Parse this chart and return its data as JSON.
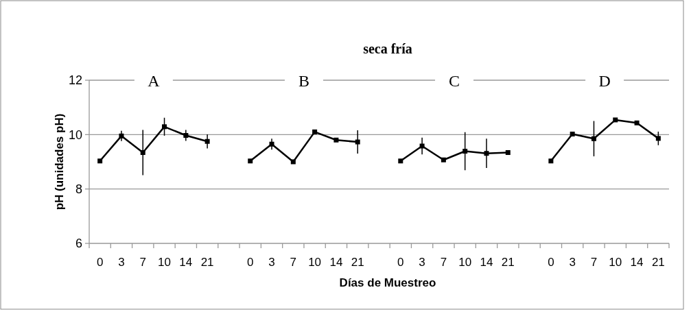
{
  "chart_data": {
    "type": "line",
    "title": "seca fría",
    "xlabel": "Días de Muestreo",
    "ylabel": "pH (unidades pH)",
    "categories": [
      "0",
      "3",
      "7",
      "10",
      "14",
      "21",
      null,
      "0",
      "3",
      "7",
      "10",
      "14",
      "21",
      null,
      "0",
      "3",
      "7",
      "10",
      "14",
      "21",
      null,
      "0",
      "3",
      "7",
      "10",
      "14",
      "21"
    ],
    "series": [
      {
        "color": "#000000",
        "values": [
          9.03,
          9.95,
          9.34,
          10.29,
          9.97,
          9.75,
          null,
          9.03,
          9.65,
          9.0,
          10.1,
          9.8,
          9.73,
          null,
          9.03,
          9.58,
          9.07,
          9.39,
          9.31,
          9.34,
          null,
          9.03,
          10.02,
          9.85,
          10.54,
          10.43,
          9.86
        ],
        "errors": [
          null,
          0.19,
          0.83,
          0.33,
          0.2,
          0.26,
          null,
          null,
          0.2,
          null,
          null,
          null,
          0.43,
          null,
          null,
          0.31,
          null,
          0.7,
          0.54,
          null,
          null,
          null,
          null,
          0.65,
          null,
          null,
          0.25
        ]
      }
    ],
    "ylim": [
      6,
      12
    ],
    "yticks": [
      6,
      8,
      10,
      12
    ],
    "grid": "y",
    "marker": "square",
    "line_style": "solid",
    "annotations": [
      "A",
      "B",
      "C",
      "D"
    ]
  }
}
